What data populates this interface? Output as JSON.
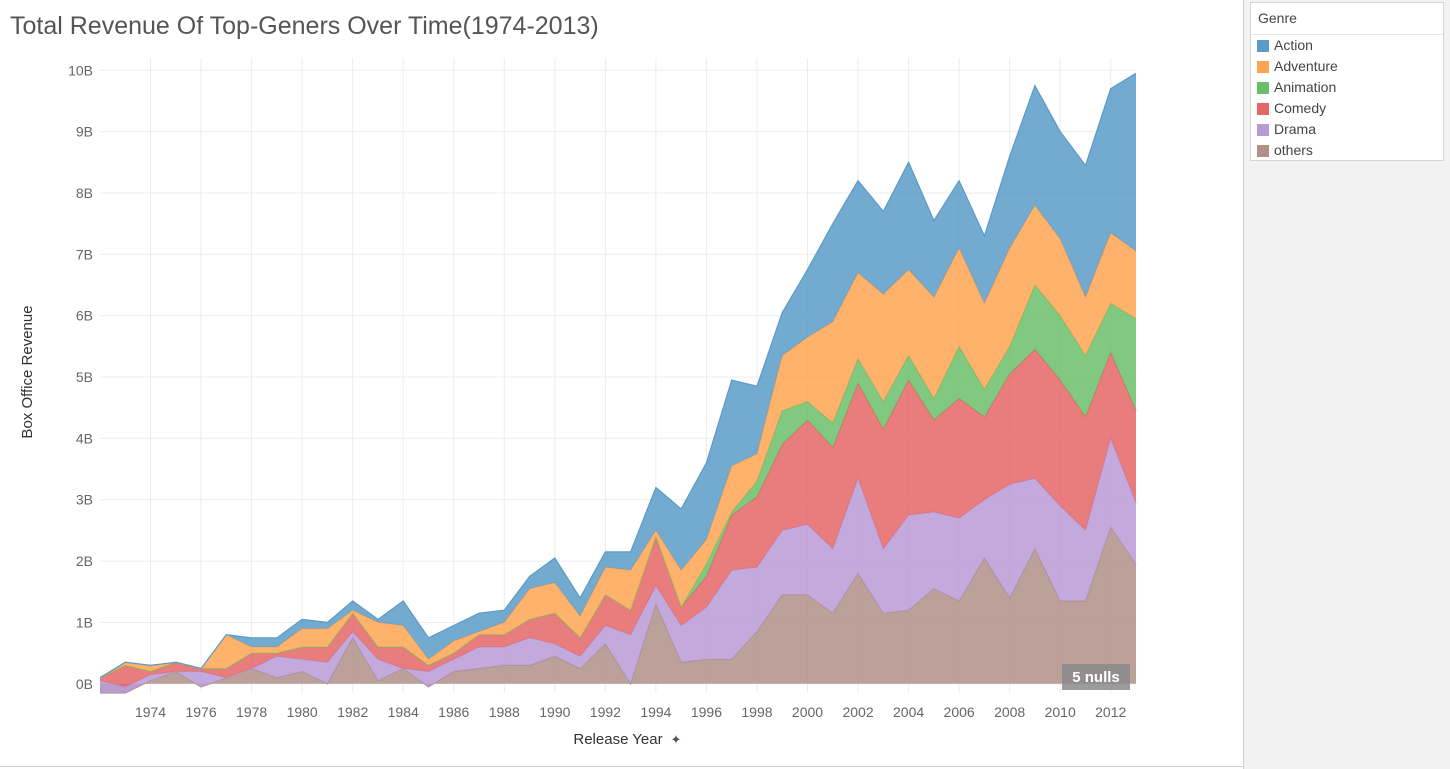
{
  "title": "Total Revenue Of Top-Geners Over Time(1974-2013)",
  "legend": {
    "title": "Genre",
    "items": [
      {
        "label": "Action",
        "color": "#5b9bc8"
      },
      {
        "label": "Adventure",
        "color": "#ffa552"
      },
      {
        "label": "Animation",
        "color": "#6bbf6b"
      },
      {
        "label": "Comedy",
        "color": "#e56666"
      },
      {
        "label": "Drama",
        "color": "#b89ad6"
      },
      {
        "label": "others",
        "color": "#b09088"
      }
    ]
  },
  "nulls_badge": "5 nulls",
  "chart_data": {
    "type": "area",
    "stacked": true,
    "title": "Total Revenue Of Top-Geners Over Time(1974-2013)",
    "xlabel": "Release Year",
    "ylabel": "Box Office Revenue",
    "x": [
      1972,
      1973,
      1974,
      1975,
      1976,
      1977,
      1978,
      1979,
      1980,
      1981,
      1982,
      1983,
      1984,
      1985,
      1986,
      1987,
      1988,
      1989,
      1990,
      1991,
      1992,
      1993,
      1994,
      1995,
      1996,
      1997,
      1998,
      1999,
      2000,
      2001,
      2002,
      2003,
      2004,
      2005,
      2006,
      2007,
      2008,
      2009,
      2010,
      2011,
      2012,
      2013
    ],
    "x_ticks": [
      1974,
      1976,
      1978,
      1980,
      1982,
      1984,
      1986,
      1988,
      1990,
      1992,
      1994,
      1996,
      1998,
      2000,
      2002,
      2004,
      2006,
      2008,
      2010,
      2012
    ],
    "x_tick_labels": [
      "1974",
      "1976",
      "1978",
      "1980",
      "1982",
      "1984",
      "1986",
      "1988",
      "1990",
      "1992",
      "1994",
      "1996",
      "1998",
      "2000",
      "2002",
      "2004",
      "2006",
      "2008",
      "2010",
      "2012"
    ],
    "ylim": [
      -0.15,
      10.2
    ],
    "y_ticks": [
      0,
      1,
      2,
      3,
      4,
      5,
      6,
      7,
      8,
      9,
      10
    ],
    "y_tick_labels": [
      "0B",
      "1B",
      "2B",
      "3B",
      "4B",
      "5B",
      "6B",
      "7B",
      "8B",
      "9B",
      "10B"
    ],
    "grid": true,
    "legend_position": "right",
    "series_order_bottom_to_top": [
      "others",
      "Drama",
      "Comedy",
      "Animation",
      "Adventure",
      "Action"
    ],
    "series": [
      {
        "name": "others",
        "color": "#b09088",
        "values": [
          -0.15,
          -0.15,
          0.05,
          0.2,
          -0.05,
          0.1,
          0.25,
          0.1,
          0.2,
          0.0,
          0.75,
          0.05,
          0.25,
          -0.05,
          0.2,
          0.25,
          0.3,
          0.3,
          0.45,
          0.25,
          0.65,
          0.0,
          1.3,
          0.35,
          0.4,
          0.4,
          0.85,
          1.45,
          1.45,
          1.15,
          1.8,
          1.15,
          1.2,
          1.55,
          1.35,
          2.05,
          1.4,
          2.2,
          1.35,
          1.35,
          2.55,
          1.95
        ]
      },
      {
        "name": "Drama",
        "color": "#b89ad6",
        "values": [
          0.2,
          0.1,
          0.1,
          0.0,
          0.25,
          0.0,
          0.0,
          0.35,
          0.2,
          0.35,
          0.1,
          0.35,
          0.0,
          0.25,
          0.2,
          0.35,
          0.3,
          0.45,
          0.2,
          0.2,
          0.3,
          0.8,
          0.3,
          0.6,
          0.85,
          1.45,
          1.05,
          1.05,
          1.15,
          1.05,
          1.55,
          1.05,
          1.55,
          1.25,
          1.35,
          0.95,
          1.85,
          1.15,
          1.55,
          1.15,
          1.45,
          1.0
        ]
      },
      {
        "name": "Comedy",
        "color": "#e56666",
        "values": [
          0.05,
          0.35,
          0.05,
          0.15,
          0.05,
          0.15,
          0.25,
          0.05,
          0.2,
          0.25,
          0.3,
          0.2,
          0.35,
          0.1,
          0.1,
          0.2,
          0.2,
          0.3,
          0.5,
          0.3,
          0.5,
          0.4,
          0.8,
          0.3,
          0.5,
          0.9,
          1.15,
          1.4,
          1.7,
          1.65,
          1.55,
          1.95,
          2.2,
          1.5,
          1.95,
          1.35,
          1.8,
          2.1,
          2.05,
          1.85,
          1.4,
          1.5
        ]
      },
      {
        "name": "Animation",
        "color": "#6bbf6b",
        "values": [
          0.0,
          0.0,
          0.0,
          0.0,
          0.0,
          0.0,
          0.0,
          0.0,
          0.0,
          0.0,
          0.0,
          0.0,
          0.0,
          0.0,
          0.0,
          0.0,
          0.0,
          0.0,
          0.0,
          0.0,
          0.0,
          0.0,
          0.0,
          0.0,
          0.2,
          0.05,
          0.25,
          0.55,
          0.3,
          0.4,
          0.4,
          0.45,
          0.4,
          0.35,
          0.85,
          0.45,
          0.45,
          1.05,
          1.05,
          1.0,
          0.8,
          1.5
        ]
      },
      {
        "name": "Adventure",
        "color": "#ffa552",
        "values": [
          0.0,
          0.05,
          0.1,
          0.0,
          0.0,
          0.55,
          0.1,
          0.1,
          0.3,
          0.3,
          0.05,
          0.4,
          0.35,
          0.1,
          0.2,
          0.05,
          0.2,
          0.5,
          0.5,
          0.35,
          0.45,
          0.65,
          0.1,
          0.6,
          0.4,
          0.75,
          0.45,
          0.9,
          1.05,
          1.65,
          1.4,
          1.75,
          1.4,
          1.65,
          1.6,
          1.4,
          1.6,
          1.3,
          1.25,
          0.95,
          1.15,
          1.1
        ]
      },
      {
        "name": "Action",
        "color": "#5b9bc8",
        "values": [
          0.0,
          0.0,
          0.0,
          0.0,
          0.0,
          0.0,
          0.15,
          0.15,
          0.15,
          0.1,
          0.15,
          0.05,
          0.4,
          0.35,
          0.25,
          0.3,
          0.2,
          0.2,
          0.4,
          0.3,
          0.25,
          0.3,
          0.7,
          1.0,
          1.25,
          1.4,
          1.1,
          0.7,
          1.1,
          1.6,
          1.5,
          1.35,
          1.75,
          1.25,
          1.1,
          1.1,
          1.5,
          1.95,
          1.75,
          2.15,
          2.35,
          2.9
        ]
      }
    ]
  }
}
